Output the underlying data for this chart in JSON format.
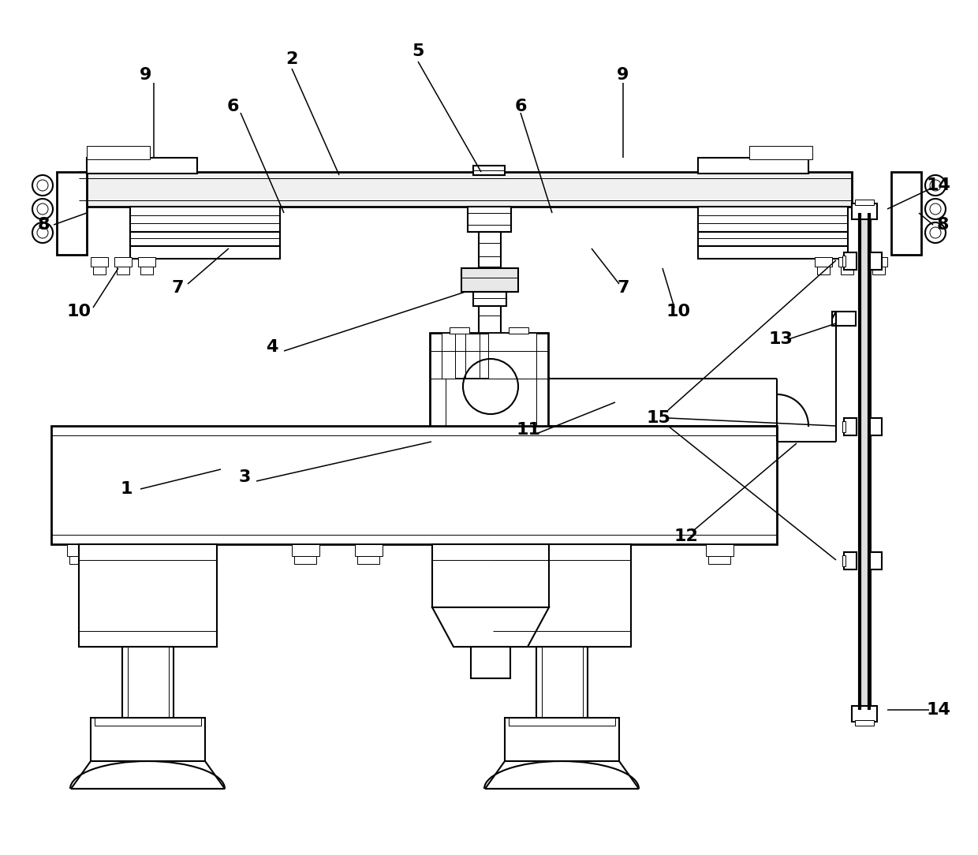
{
  "bg_color": "#ffffff",
  "lc": "#000000",
  "lw": 1.5,
  "tlw": 0.7,
  "thklw": 2.0,
  "fig_w": 12.4,
  "fig_h": 10.84
}
